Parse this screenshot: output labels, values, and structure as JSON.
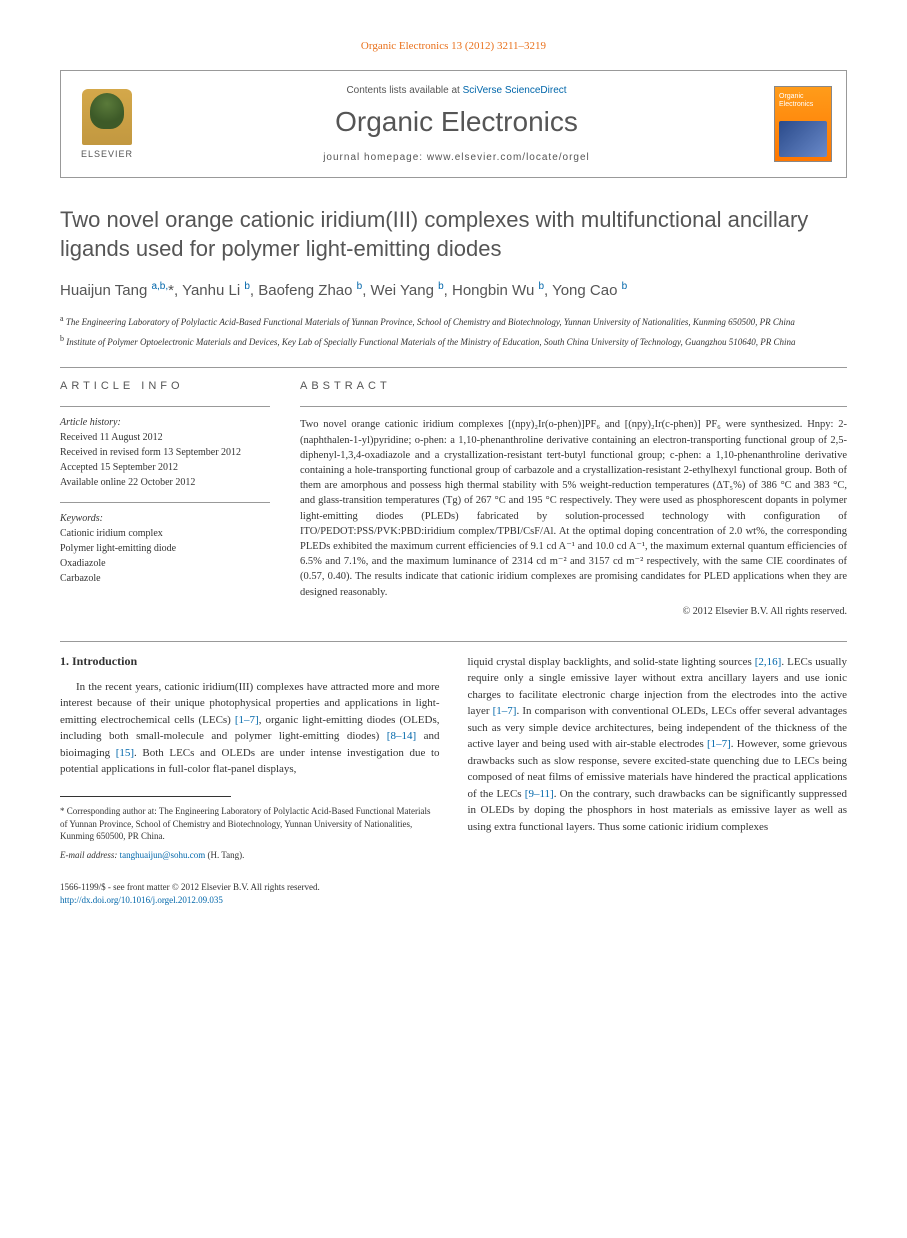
{
  "header": {
    "citation": "Organic Electronics 13 (2012) 3211–3219",
    "contents_prefix": "Contents lists available at ",
    "sciverse": "SciVerse ScienceDirect",
    "journal_name": "Organic Electronics",
    "homepage_prefix": "journal homepage: ",
    "homepage_url": "www.elsevier.com/locate/orgel",
    "elsevier_label": "ELSEVIER",
    "cover_title": "Organic Electronics"
  },
  "article": {
    "title": "Two novel orange cationic iridium(III) complexes with multifunctional ancillary ligands used for polymer light-emitting diodes",
    "authors_html": "Huaijun Tang <sup>a,b,</sup><span class='author-star'>*</span>, Yanhu Li <sup>b</sup>, Baofeng Zhao <sup>b</sup>, Wei Yang <sup>b</sup>, Hongbin Wu <sup>b</sup>, Yong Cao <sup>b</sup>",
    "affil_a": "The Engineering Laboratory of Polylactic Acid-Based Functional Materials of Yunnan Province, School of Chemistry and Biotechnology, Yunnan University of Nationalities, Kunming 650500, PR China",
    "affil_b": "Institute of Polymer Optoelectronic Materials and Devices, Key Lab of Specially Functional Materials of the Ministry of Education, South China University of Technology, Guangzhou 510640, PR China"
  },
  "info": {
    "heading": "ARTICLE INFO",
    "history_label": "Article history:",
    "history": "Received 11 August 2012\nReceived in revised form 13 September 2012\nAccepted 15 September 2012\nAvailable online 22 October 2012",
    "keywords_label": "Keywords:",
    "keywords": "Cationic iridium complex\nPolymer light-emitting diode\nOxadiazole\nCarbazole"
  },
  "abstract": {
    "heading": "ABSTRACT",
    "text": "Two novel orange cationic iridium complexes [(npy)₂Ir(o-phen)]PF₆ and [(npy)₂Ir(c-phen)] PF₆ were synthesized. Hnpy: 2-(naphthalen-1-yl)pyridine; o-phen: a 1,10-phenanthroline derivative containing an electron-transporting functional group of 2,5-diphenyl-1,3,4-oxadiazole and a crystallization-resistant tert-butyl functional group; c-phen: a 1,10-phenanthroline derivative containing a hole-transporting functional group of carbazole and a crystallization-resistant 2-ethylhexyl functional group. Both of them are amorphous and possess high thermal stability with 5% weight-reduction temperatures (ΔT₅%) of 386 °C and 383 °C, and glass-transition temperatures (Tg) of 267 °C and 195 °C respectively. They were used as phosphorescent dopants in polymer light-emitting diodes (PLEDs) fabricated by solution-processed technology with configuration of ITO/PEDOT:PSS/PVK:PBD:iridium complex/TPBI/CsF/Al. At the optimal doping concentration of 2.0 wt%, the corresponding PLEDs exhibited the maximum current efficiencies of 9.1 cd A⁻¹ and 10.0 cd A⁻¹, the maximum external quantum efficiencies of 6.5% and 7.1%, and the maximum luminance of 2314 cd m⁻² and 3157 cd m⁻² respectively, with the same CIE coordinates of (0.57, 0.40). The results indicate that cationic iridium complexes are promising candidates for PLED applications when they are designed reasonably.",
    "copyright": "© 2012 Elsevier B.V. All rights reserved."
  },
  "body": {
    "intro_head": "1. Introduction",
    "col1": "In the recent years, cationic iridium(III) complexes have attracted more and more interest because of their unique photophysical properties and applications in light-emitting electrochemical cells (LECs) [1–7], organic light-emitting diodes (OLEDs, including both small-molecule and polymer light-emitting diodes) [8–14] and bioimaging [15]. Both LECs and OLEDs are under intense investigation due to potential applications in full-color flat-panel displays,",
    "col2": "liquid crystal display backlights, and solid-state lighting sources [2,16]. LECs usually require only a single emissive layer without extra ancillary layers and use ionic charges to facilitate electronic charge injection from the electrodes into the active layer [1–7]. In comparison with conventional OLEDs, LECs offer several advantages such as very simple device architectures, being independent of the thickness of the active layer and being used with air-stable electrodes [1–7]. However, some grievous drawbacks such as slow response, severe excited-state quenching due to LECs being composed of neat films of emissive materials have hindered the practical applications of the LECs [9–11]. On the contrary, such drawbacks can be significantly suppressed in OLEDs by doping the phosphors in host materials as emissive layer as well as using extra functional layers. Thus some cationic iridium complexes"
  },
  "footnote": {
    "corr_label": "* Corresponding author at:",
    "corr_text": " The Engineering Laboratory of Polylactic Acid-Based Functional Materials of Yunnan Province, School of Chemistry and Biotechnology, Yunnan University of Nationalities, Kunming 650500, PR China.",
    "email_label": "E-mail address:",
    "email": "tanghuaijun@sohu.com",
    "email_suffix": " (H. Tang)."
  },
  "footer": {
    "line1": "1566-1199/$ - see front matter © 2012 Elsevier B.V. All rights reserved.",
    "doi": "http://dx.doi.org/10.1016/j.orgel.2012.09.035"
  },
  "refs": {
    "r1_7": "[1–7]",
    "r8_14": "[8–14]",
    "r15": "[15]",
    "r2_16": "[2,16]",
    "r9_11": "[9–11]"
  },
  "colors": {
    "orange": "#e9711c",
    "link_blue": "#0066aa",
    "heading_gray": "#555555",
    "text": "#333333"
  }
}
